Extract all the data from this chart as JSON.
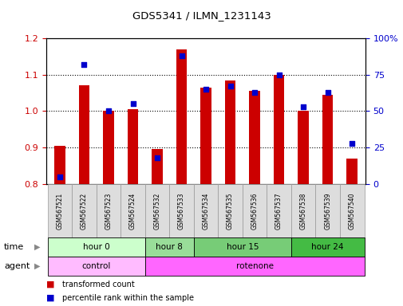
{
  "title": "GDS5341 / ILMN_1231143",
  "samples": [
    "GSM567521",
    "GSM567522",
    "GSM567523",
    "GSM567524",
    "GSM567532",
    "GSM567533",
    "GSM567534",
    "GSM567535",
    "GSM567536",
    "GSM567537",
    "GSM567538",
    "GSM567539",
    "GSM567540"
  ],
  "red_values": [
    0.905,
    1.07,
    1.0,
    1.005,
    0.895,
    1.17,
    1.065,
    1.085,
    1.055,
    1.1,
    1.0,
    1.045,
    0.87
  ],
  "blue_values": [
    5,
    82,
    50,
    55,
    18,
    88,
    65,
    67,
    63,
    75,
    53,
    63,
    28
  ],
  "ylim_left": [
    0.8,
    1.2
  ],
  "ylim_right": [
    0,
    100
  ],
  "left_yticks": [
    0.8,
    0.9,
    1.0,
    1.1,
    1.2
  ],
  "right_yticks": [
    0,
    25,
    50,
    75,
    100
  ],
  "right_yticklabels": [
    "0",
    "25",
    "50",
    "75",
    "100%"
  ],
  "bar_color": "#cc0000",
  "dot_color": "#0000cc",
  "bar_bottom": 0.8,
  "bar_width": 0.5,
  "group_data": [
    {
      "label": "hour 0",
      "indices": [
        0,
        1,
        2,
        3
      ],
      "color": "#ccffcc"
    },
    {
      "label": "hour 8",
      "indices": [
        4,
        5
      ],
      "color": "#99dd99"
    },
    {
      "label": "hour 15",
      "indices": [
        6,
        7,
        8,
        9
      ],
      "color": "#77cc77"
    },
    {
      "label": "hour 24",
      "indices": [
        10,
        11,
        12
      ],
      "color": "#44bb44"
    }
  ],
  "agent_data": [
    {
      "label": "control",
      "indices": [
        0,
        1,
        2,
        3
      ],
      "color": "#ffbbff"
    },
    {
      "label": "rotenone",
      "indices": [
        4,
        5,
        6,
        7,
        8,
        9,
        10,
        11,
        12
      ],
      "color": "#ff66ff"
    }
  ],
  "sample_box_color": "#dddddd",
  "sample_box_edge_color": "#999999",
  "legend_red": "transformed count",
  "legend_blue": "percentile rank within the sample"
}
